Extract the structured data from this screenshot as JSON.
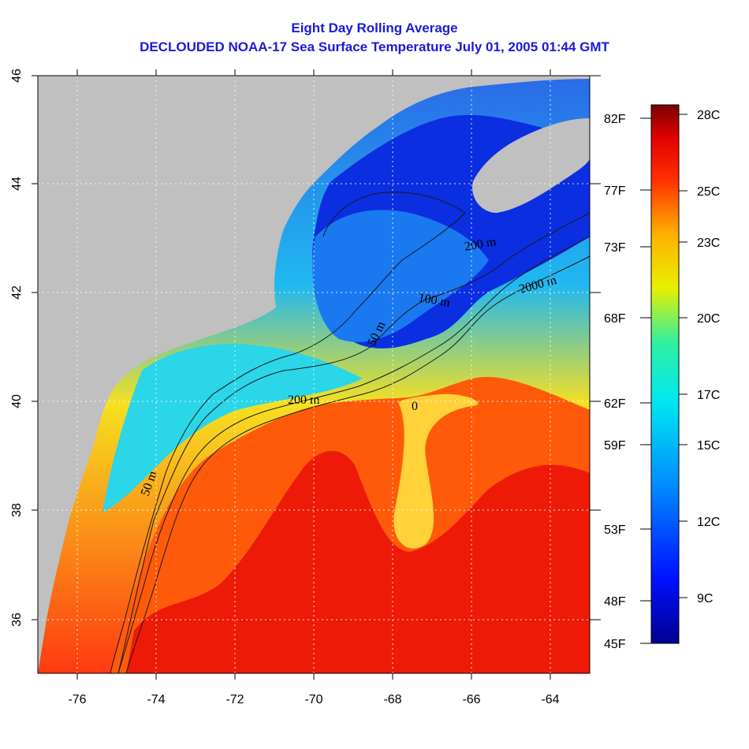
{
  "title": "Eight Day Rolling Average",
  "subtitle": "DECLOUDED NOAA-17 Sea Surface Temperature July 01, 2005 01:44 GMT",
  "map": {
    "lon_range": [
      -77,
      -63
    ],
    "lat_range": [
      35,
      46
    ],
    "x_ticks": [
      "-76",
      "-74",
      "-72",
      "-70",
      "-68",
      "-66",
      "-64"
    ],
    "y_ticks": [
      "36",
      "38",
      "40",
      "42",
      "44",
      "46"
    ],
    "grid": true,
    "land_color": "#c0c0c0",
    "contour_labels": [
      "50 m",
      "200 m",
      "2000 m",
      "100 m",
      "50 m",
      "200 m",
      "0"
    ]
  },
  "fahrenheit_labels": [
    "82F",
    "77F",
    "73F",
    "68F",
    "62F",
    "59F",
    "53F",
    "48F",
    "45F"
  ],
  "celsius_labels": [
    "28C",
    "25C",
    "23C",
    "20C",
    "17C",
    "15C",
    "12C",
    "9C"
  ]
}
